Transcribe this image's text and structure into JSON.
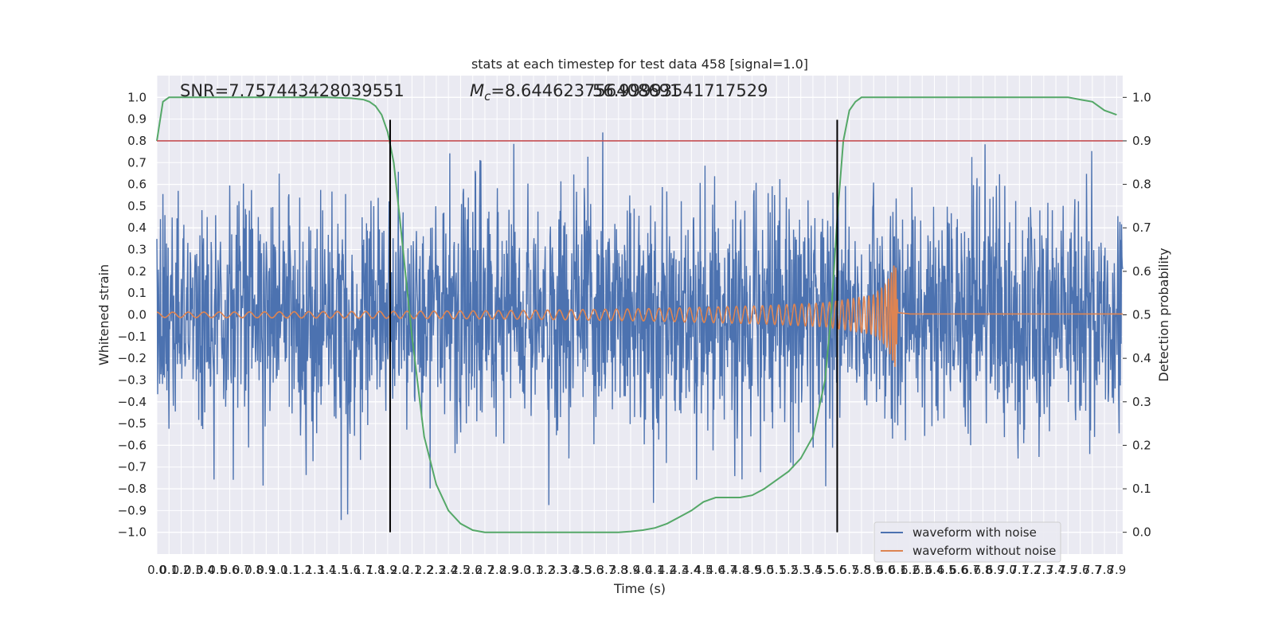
{
  "chart_data": {
    "type": "line",
    "title": "stats at each timestep for test data 458 [signal=1.0]",
    "xlabel": "Time (s)",
    "ylabel": "Whitened strain",
    "y2label": "Detection probability",
    "xlim": [
      0.0,
      7.95
    ],
    "ylim": [
      -1.1,
      1.1
    ],
    "y2lim": [
      -0.05,
      1.05
    ],
    "xticks": [
      0.0,
      0.1,
      0.2,
      0.3,
      0.4,
      0.5,
      0.6,
      0.7,
      0.8,
      0.9,
      1.0,
      1.1,
      1.2,
      1.3,
      1.4,
      1.5,
      1.6,
      1.7,
      1.8,
      1.9,
      2.0,
      2.1,
      2.2,
      2.3,
      2.4,
      2.5,
      2.6,
      2.7,
      2.8,
      2.9,
      3.0,
      3.1,
      3.2,
      3.3,
      3.4,
      3.5,
      3.6,
      3.7,
      3.8,
      3.9,
      4.0,
      4.1,
      4.2,
      4.3,
      4.4,
      4.5,
      4.6,
      4.7,
      4.8,
      4.9,
      5.0,
      5.1,
      5.2,
      5.3,
      5.4,
      5.5,
      5.6,
      5.7,
      5.8,
      5.9,
      6.0,
      6.1,
      6.2,
      6.3,
      6.4,
      6.5,
      6.6,
      6.7,
      6.8,
      6.9,
      7.0,
      7.1,
      7.2,
      7.3,
      7.4,
      7.5,
      7.6,
      7.7,
      7.8,
      7.9
    ],
    "yticks": [
      -1.0,
      -0.9,
      -0.8,
      -0.7,
      -0.6,
      -0.5,
      -0.4,
      -0.3,
      -0.2,
      -0.1,
      0.0,
      0.1,
      0.2,
      0.3,
      0.4,
      0.5,
      0.6,
      0.7,
      0.8,
      0.9,
      1.0
    ],
    "y2ticks": [
      0.0,
      0.1,
      0.2,
      0.3,
      0.4,
      0.5,
      0.6,
      0.7,
      0.8,
      0.9,
      1.0
    ],
    "grid": true,
    "legend_position": "lower-right",
    "annotations": [
      {
        "text": "SNR=7.757443428039551"
      },
      {
        "text": "M_c=8.644623756408691"
      },
      {
        "text": "56.99993541717529"
      }
    ],
    "series": [
      {
        "name": "waveform with noise",
        "color": "#4c72b0",
        "axis": "left",
        "kind": "noise",
        "envelope_typical": 0.45,
        "peak_max": 0.93,
        "peak_min": -0.99
      },
      {
        "name": "waveform without noise",
        "color": "#dd8452",
        "axis": "left",
        "kind": "chirp",
        "x": [
          0.0,
          1.0,
          2.0,
          3.0,
          4.0,
          5.0,
          5.5,
          5.9,
          6.0,
          6.05,
          6.08,
          6.1,
          6.2,
          7.95
        ],
        "amplitude": [
          0.012,
          0.014,
          0.016,
          0.02,
          0.028,
          0.042,
          0.055,
          0.09,
          0.14,
          0.2,
          0.25,
          0.01,
          0.004,
          0.004
        ]
      },
      {
        "name": "detection probability",
        "color": "#55a868",
        "axis": "right",
        "x": [
          0.0,
          0.05,
          0.1,
          0.3,
          0.6,
          1.0,
          1.4,
          1.6,
          1.7,
          1.75,
          1.8,
          1.85,
          1.9,
          1.95,
          2.0,
          2.1,
          2.2,
          2.3,
          2.4,
          2.5,
          2.6,
          2.7,
          2.8,
          3.0,
          3.4,
          3.8,
          3.9,
          4.0,
          4.1,
          4.2,
          4.3,
          4.4,
          4.5,
          4.6,
          4.7,
          4.8,
          4.9,
          5.0,
          5.1,
          5.2,
          5.3,
          5.4,
          5.5,
          5.55,
          5.6,
          5.65,
          5.7,
          5.75,
          5.8,
          6.0,
          6.5,
          7.0,
          7.5,
          7.6,
          7.7,
          7.8,
          7.9
        ],
        "y": [
          0.9,
          0.99,
          1.0,
          1.0,
          1.0,
          1.0,
          1.0,
          0.998,
          0.995,
          0.99,
          0.98,
          0.96,
          0.92,
          0.85,
          0.72,
          0.45,
          0.22,
          0.11,
          0.05,
          0.02,
          0.005,
          0.0,
          0.0,
          0.0,
          0.0,
          0.0,
          0.002,
          0.005,
          0.01,
          0.02,
          0.035,
          0.05,
          0.07,
          0.08,
          0.08,
          0.08,
          0.085,
          0.1,
          0.12,
          0.14,
          0.17,
          0.22,
          0.35,
          0.5,
          0.72,
          0.9,
          0.97,
          0.99,
          1.0,
          1.0,
          1.0,
          1.0,
          1.0,
          0.995,
          0.99,
          0.97,
          0.96
        ]
      }
    ],
    "hlines": [
      {
        "y2": 0.9,
        "color": "#c44e52"
      }
    ],
    "vlines": [
      {
        "x": 1.92,
        "color": "#000000",
        "y_from": -1.0,
        "y_to": 0.97
      },
      {
        "x": 5.6,
        "color": "#000000",
        "y_from": -1.0,
        "y_to": 0.97
      }
    ],
    "colors": {
      "background": "#eaeaf2",
      "grid": "#ffffff",
      "text": "#262626"
    }
  }
}
